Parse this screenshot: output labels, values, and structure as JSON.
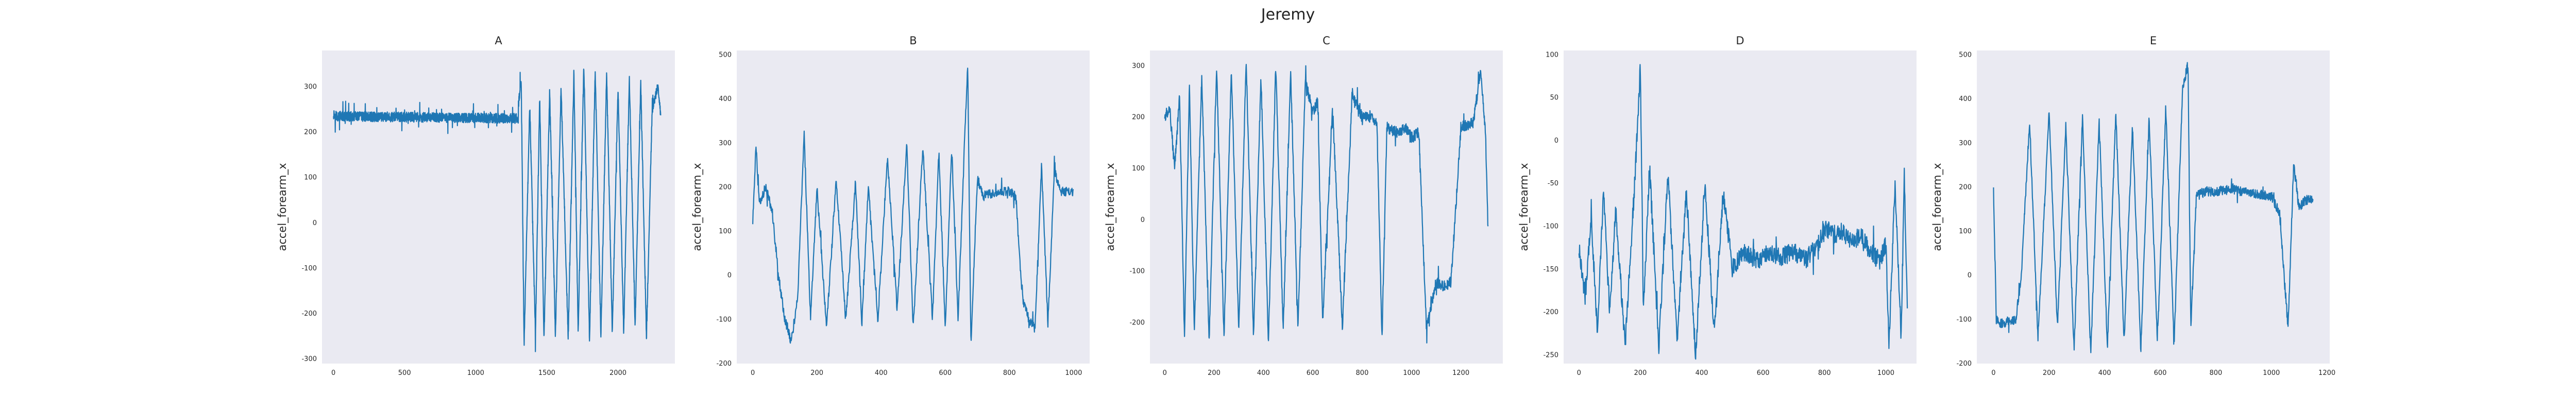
{
  "figure": {
    "title": "Jeremy"
  },
  "colors": {
    "plot_background": "#eaeaf2",
    "series": "#1f77b4",
    "text": "#262626"
  },
  "chart_data": [
    {
      "type": "line",
      "title": "A",
      "xlabel": "",
      "ylabel": "accel_forearm_x",
      "xlim": [
        -80,
        2400
      ],
      "ylim": [
        -310,
        380
      ],
      "xticks": [
        0,
        500,
        1000,
        1500,
        2000
      ],
      "yticks": [
        -300,
        -200,
        -100,
        0,
        100,
        200,
        300
      ],
      "grid": false,
      "legend": "none",
      "n_points": 2300,
      "profile": [
        [
          0,
          240
        ],
        [
          30,
          235
        ],
        [
          1300,
          230
        ],
        [
          1330,
          225
        ],
        [
          2300,
          230
        ]
      ],
      "x": [
        0,
        40,
        200,
        400,
        600,
        800,
        1000,
        1200,
        1290,
        1320,
        1340,
        1380,
        1420,
        1450,
        1480,
        1520,
        1560,
        1600,
        1650,
        1690,
        1720,
        1760,
        1800,
        1840,
        1880,
        1920,
        1960,
        2000,
        2040,
        2080,
        2120,
        2160,
        2200,
        2240,
        2280,
        2300
      ],
      "y": [
        250,
        235,
        232,
        230,
        228,
        226,
        228,
        230,
        225,
        320,
        -270,
        260,
        -250,
        280,
        -260,
        290,
        -250,
        300,
        -255,
        330,
        -240,
        350,
        -260,
        340,
        -250,
        330,
        -245,
        300,
        -240,
        320,
        -230,
        310,
        -255,
        250,
        300,
        240
      ]
    },
    {
      "type": "line",
      "title": "B",
      "xlabel": "",
      "ylabel": "accel_forearm_x",
      "xlim": [
        -50,
        1050
      ],
      "ylim": [
        -200,
        510
      ],
      "xticks": [
        0,
        200,
        400,
        600,
        800,
        1000
      ],
      "yticks": [
        -200,
        -100,
        0,
        100,
        200,
        300,
        400,
        500
      ],
      "grid": false,
      "legend": "none",
      "n_points": 1000,
      "x": [
        0,
        10,
        20,
        40,
        60,
        80,
        100,
        120,
        140,
        160,
        180,
        200,
        230,
        260,
        290,
        320,
        340,
        360,
        390,
        420,
        450,
        480,
        500,
        530,
        560,
        580,
        600,
        620,
        640,
        660,
        670,
        680,
        700,
        720,
        760,
        800,
        820,
        840,
        860,
        880,
        900,
        920,
        940,
        960,
        1000
      ],
      "y": [
        120,
        300,
        160,
        200,
        150,
        0,
        -100,
        -150,
        -50,
        320,
        -100,
        200,
        -120,
        220,
        -100,
        210,
        -110,
        200,
        -100,
        270,
        -80,
        300,
        -120,
        290,
        -100,
        280,
        -120,
        290,
        -100,
        300,
        480,
        -160,
        220,
        180,
        190,
        190,
        180,
        -50,
        -100,
        -120,
        250,
        -110,
        240,
        190,
        190
      ]
    },
    {
      "type": "line",
      "title": "C",
      "xlabel": "",
      "ylabel": "accel_forearm_x",
      "xlim": [
        -60,
        1370
      ],
      "ylim": [
        -280,
        330
      ],
      "xticks": [
        0,
        200,
        400,
        600,
        800,
        1000,
        1200
      ],
      "yticks": [
        -200,
        -100,
        0,
        100,
        200,
        300
      ],
      "grid": false,
      "legend": "none",
      "n_points": 1310,
      "x": [
        0,
        20,
        40,
        60,
        80,
        100,
        120,
        150,
        180,
        210,
        240,
        270,
        300,
        330,
        360,
        390,
        420,
        450,
        480,
        510,
        540,
        570,
        600,
        620,
        640,
        680,
        720,
        760,
        800,
        830,
        860,
        880,
        900,
        940,
        980,
        1000,
        1030,
        1060,
        1100,
        1130,
        1160,
        1200,
        1250,
        1280,
        1300,
        1310
      ],
      "y": [
        200,
        220,
        100,
        240,
        -230,
        260,
        -220,
        280,
        -240,
        300,
        -230,
        290,
        -220,
        310,
        -230,
        280,
        -240,
        300,
        -220,
        290,
        -210,
        270,
        210,
        230,
        -200,
        220,
        -210,
        250,
        200,
        200,
        190,
        -230,
        180,
        170,
        180,
        160,
        170,
        -210,
        -120,
        -130,
        -120,
        180,
        190,
        290,
        170,
        -20
      ]
    },
    {
      "type": "line",
      "title": "D",
      "xlabel": "",
      "ylabel": "accel_forearm_x",
      "xlim": [
        -50,
        1100
      ],
      "ylim": [
        -260,
        105
      ],
      "xticks": [
        0,
        200,
        400,
        600,
        800,
        1000
      ],
      "yticks": [
        -250,
        -200,
        -150,
        -100,
        -50,
        0,
        50,
        100
      ],
      "grid": false,
      "legend": "none",
      "n_points": 1070,
      "x": [
        0,
        20,
        40,
        60,
        80,
        100,
        120,
        150,
        180,
        200,
        210,
        230,
        260,
        290,
        320,
        350,
        380,
        410,
        440,
        470,
        500,
        540,
        580,
        620,
        660,
        700,
        740,
        780,
        800,
        830,
        860,
        890,
        920,
        950,
        980,
        1000,
        1010,
        1030,
        1050,
        1060,
        1070
      ],
      "y": [
        -130,
        -180,
        -90,
        -220,
        -60,
        -200,
        -80,
        -240,
        -60,
        85,
        -200,
        -30,
        -240,
        -40,
        -230,
        -60,
        -250,
        -50,
        -220,
        -60,
        -150,
        -130,
        -140,
        -130,
        -135,
        -130,
        -140,
        -120,
        -100,
        -110,
        -105,
        -120,
        -110,
        -130,
        -140,
        -120,
        -240,
        -50,
        -230,
        -40,
        -200
      ]
    },
    {
      "type": "line",
      "title": "E",
      "xlabel": "",
      "ylabel": "accel_forearm_x",
      "xlim": [
        -60,
        1210
      ],
      "ylim": [
        -200,
        510
      ],
      "xticks": [
        0,
        200,
        400,
        600,
        800,
        1000,
        1200
      ],
      "yticks": [
        -200,
        -100,
        0,
        100,
        200,
        300,
        400,
        500
      ],
      "grid": false,
      "legend": "none",
      "n_points": 1150,
      "x": [
        0,
        10,
        20,
        80,
        100,
        130,
        160,
        200,
        230,
        260,
        290,
        320,
        350,
        380,
        410,
        440,
        470,
        500,
        530,
        560,
        590,
        620,
        650,
        680,
        700,
        710,
        730,
        760,
        800,
        850,
        900,
        950,
        1000,
        1030,
        1060,
        1080,
        1100,
        1120,
        1150
      ],
      "y": [
        200,
        -100,
        -110,
        -100,
        0,
        350,
        -140,
        370,
        -120,
        340,
        -170,
        360,
        -180,
        350,
        -160,
        370,
        -150,
        340,
        -170,
        360,
        -150,
        380,
        -160,
        420,
        480,
        -120,
        180,
        190,
        190,
        195,
        190,
        185,
        180,
        140,
        -120,
        250,
        150,
        170,
        175
      ]
    }
  ]
}
